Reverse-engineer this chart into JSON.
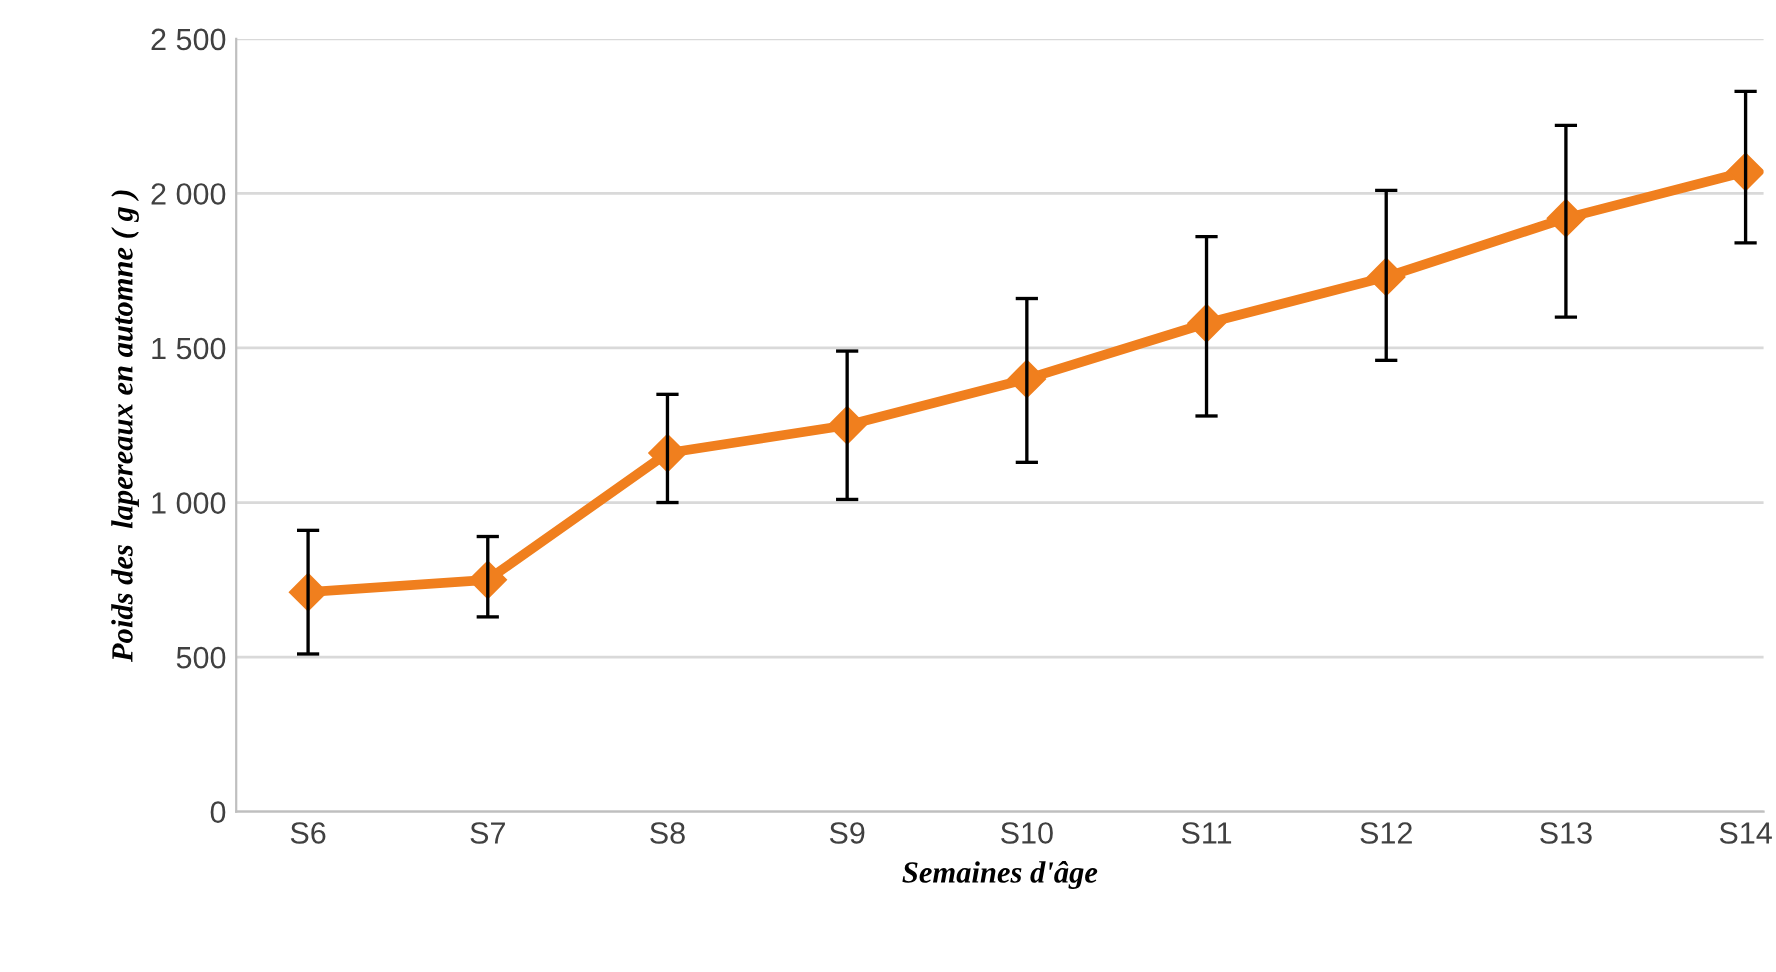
{
  "chart_data": {
    "type": "line",
    "xlabel": "Semaines d'âge",
    "ylabel": "Poids des  lapereaux en automne ( g )",
    "categories": [
      "S6",
      "S7",
      "S8",
      "S9",
      "S10",
      "S11",
      "S12",
      "S13",
      "S14"
    ],
    "series": [
      {
        "color": "#f07f1e",
        "values": [
          710,
          750,
          1160,
          1250,
          1400,
          1580,
          1730,
          1920,
          2070
        ],
        "errors": [
          [
            510,
            910
          ],
          [
            630,
            890
          ],
          [
            1000,
            1350
          ],
          [
            1010,
            1490
          ],
          [
            1130,
            1660
          ],
          [
            1280,
            1860
          ],
          [
            1460,
            2010
          ],
          [
            1600,
            2220
          ],
          [
            1840,
            2330
          ]
        ]
      }
    ],
    "ylim": [
      0,
      2500
    ],
    "yticks": [
      0,
      500,
      {
        "value": 1000,
        "label": "1 000"
      },
      {
        "value": 1500,
        "label": "1 500"
      },
      {
        "value": 2000,
        "label": "2 000"
      },
      {
        "value": 2500,
        "label": "2 500"
      }
    ],
    "grid": "y",
    "marker": "diamond",
    "line_style": "solid",
    "legend": false
  }
}
